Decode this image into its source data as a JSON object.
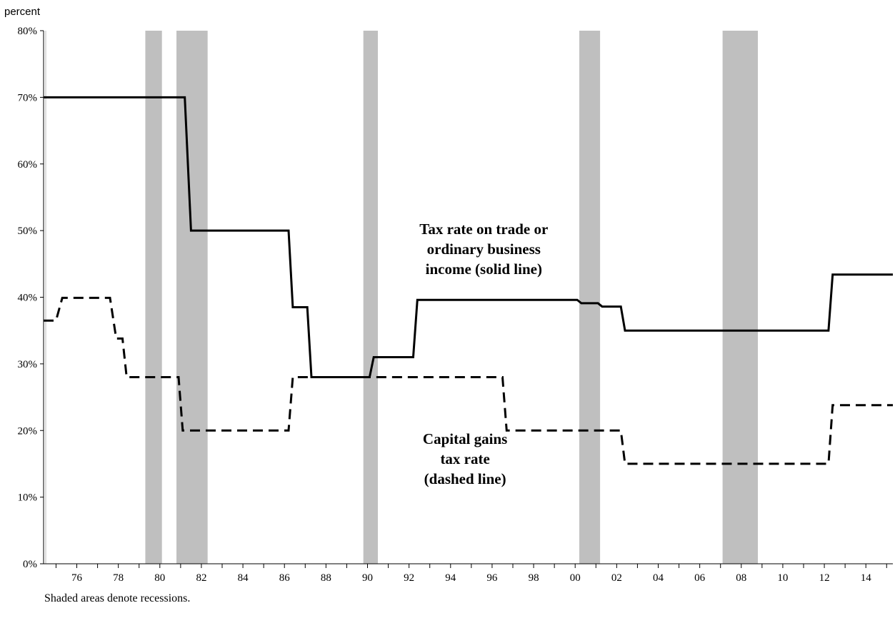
{
  "chart_data": {
    "type": "line",
    "ylabel": "percent",
    "ylim": [
      0,
      80
    ],
    "y_ticks": [
      "0%",
      "10%",
      "20%",
      "30%",
      "40%",
      "50%",
      "60%",
      "70%",
      "80%"
    ],
    "xlim": [
      1974.4,
      2015.3
    ],
    "x_ticks": [
      "76",
      "78",
      "80",
      "82",
      "84",
      "86",
      "88",
      "90",
      "92",
      "94",
      "96",
      "98",
      "00",
      "02",
      "04",
      "06",
      "08",
      "10",
      "12",
      "14"
    ],
    "x_tick_years": [
      1976,
      1978,
      1980,
      1982,
      1984,
      1986,
      1988,
      1990,
      1992,
      1994,
      1996,
      1998,
      2000,
      2002,
      2004,
      2006,
      2008,
      2010,
      2012,
      2014
    ],
    "recessions": [
      [
        1979.3,
        1980.1
      ],
      [
        1980.8,
        1982.3
      ],
      [
        1989.8,
        1990.5
      ],
      [
        2000.2,
        2001.2
      ],
      [
        2007.1,
        2008.8
      ]
    ],
    "series": [
      {
        "style": "solid",
        "points": [
          [
            1974.4,
            70
          ],
          [
            1981.2,
            70
          ],
          [
            1981.5,
            50
          ],
          [
            1986.2,
            50
          ],
          [
            1986.4,
            38.5
          ],
          [
            1987.1,
            38.5
          ],
          [
            1987.3,
            28
          ],
          [
            1990.1,
            28
          ],
          [
            1990.3,
            31
          ],
          [
            1992.2,
            31
          ],
          [
            1992.4,
            39.6
          ],
          [
            2000.1,
            39.6
          ],
          [
            2000.3,
            39.1
          ],
          [
            2001.1,
            39.1
          ],
          [
            2001.3,
            38.6
          ],
          [
            2002.2,
            38.6
          ],
          [
            2002.4,
            35
          ],
          [
            2012.2,
            35
          ],
          [
            2012.4,
            43.4
          ],
          [
            2015.3,
            43.4
          ]
        ]
      },
      {
        "style": "dashed",
        "points": [
          [
            1974.4,
            36.5
          ],
          [
            1975.0,
            36.5
          ],
          [
            1975.3,
            39.9
          ],
          [
            1977.6,
            39.9
          ],
          [
            1977.9,
            33.8
          ],
          [
            1978.2,
            33.8
          ],
          [
            1978.4,
            28
          ],
          [
            1980.9,
            28
          ],
          [
            1981.1,
            20
          ],
          [
            1986.2,
            20
          ],
          [
            1986.4,
            28
          ],
          [
            1996.5,
            28
          ],
          [
            1996.7,
            20
          ],
          [
            2002.2,
            20
          ],
          [
            2002.4,
            15
          ],
          [
            2012.2,
            15
          ],
          [
            2012.4,
            23.8
          ],
          [
            2015.3,
            23.8
          ]
        ]
      }
    ],
    "annotations": [
      {
        "lines": [
          "Tax rate on trade or",
          "ordinary business",
          "income (solid line)"
        ],
        "x": 1995.6,
        "y": 49.5
      },
      {
        "lines": [
          "Capital gains",
          "tax rate",
          "(dashed line)"
        ],
        "x": 1994.7,
        "y": 18
      }
    ]
  },
  "footnote": "Shaded areas denote recessions."
}
